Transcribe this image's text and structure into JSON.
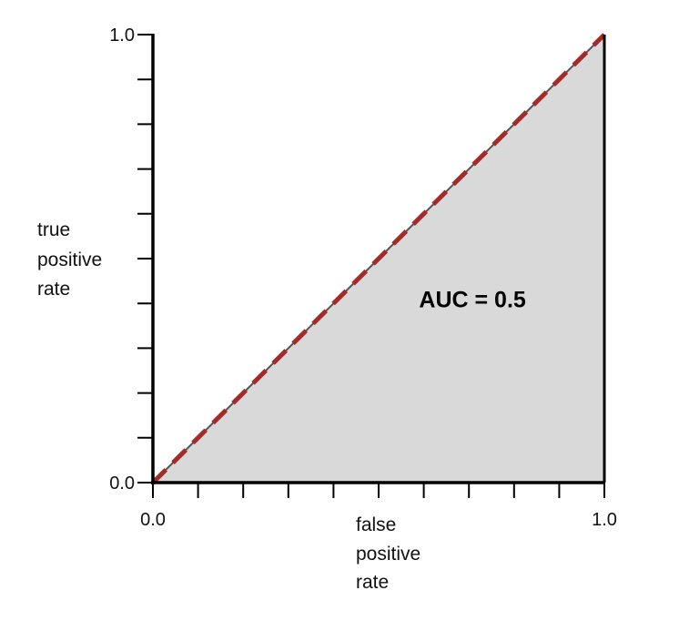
{
  "chart_data": {
    "type": "area",
    "title": "",
    "xlabel": "false positive rate",
    "ylabel": "true positive rate",
    "xlabel_lines": [
      "false",
      "positive",
      "rate"
    ],
    "ylabel_lines": [
      "true",
      "positive",
      "rate"
    ],
    "xlim": [
      0.0,
      1.0
    ],
    "ylim": [
      0.0,
      1.0
    ],
    "x_tick_labels": [
      {
        "value": 0.0,
        "label": "0.0"
      },
      {
        "value": 1.0,
        "label": "1.0"
      }
    ],
    "y_tick_labels": [
      {
        "value": 0.0,
        "label": "0.0"
      },
      {
        "value": 1.0,
        "label": "1.0"
      }
    ],
    "minor_ticks": [
      0.1,
      0.2,
      0.3,
      0.4,
      0.5,
      0.6,
      0.7,
      0.8,
      0.9
    ],
    "grid": false,
    "roc_curve": {
      "x": [
        0.0,
        1.0
      ],
      "y": [
        0.0,
        1.0
      ],
      "color": "#a52a2a",
      "style": "dashed"
    },
    "baseline": {
      "x": [
        0.0,
        1.0
      ],
      "y": [
        0.0,
        1.0
      ],
      "color": "#555555"
    },
    "area_fill_color": "#d9d9d9",
    "annotation": {
      "text": "AUC = 0.5",
      "x": 0.65,
      "y": 0.41
    }
  }
}
